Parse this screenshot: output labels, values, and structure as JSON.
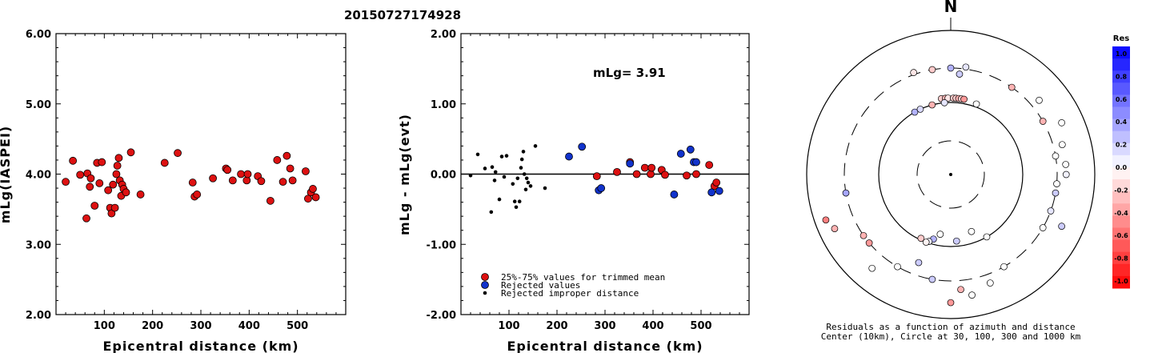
{
  "header": {
    "title": "20150727174928"
  },
  "chart_data": [
    {
      "type": "scatter",
      "xlabel": "Epicentral distance (km)",
      "ylabel": "mLg(IASPEI)",
      "xlim": [
        0,
        600
      ],
      "ylim": [
        2.0,
        6.0
      ],
      "xticks": [
        "100",
        "200",
        "300",
        "400",
        "500"
      ],
      "yticks": [
        "2.00",
        "3.00",
        "4.00",
        "5.00",
        "6.00"
      ],
      "series": [
        {
          "color": "#dd1111",
          "points": [
            [
              20,
              3.89
            ],
            [
              35,
              4.19
            ],
            [
              50,
              3.99
            ],
            [
              63,
              3.37
            ],
            [
              65,
              4.01
            ],
            [
              70,
              3.82
            ],
            [
              72,
              3.94
            ],
            [
              80,
              3.55
            ],
            [
              85,
              4.16
            ],
            [
              90,
              3.87
            ],
            [
              95,
              4.17
            ],
            [
              108,
              3.77
            ],
            [
              112,
              3.52
            ],
            [
              115,
              3.44
            ],
            [
              118,
              3.85
            ],
            [
              122,
              3.52
            ],
            [
              125,
              4.0
            ],
            [
              127,
              4.12
            ],
            [
              130,
              4.23
            ],
            [
              132,
              3.91
            ],
            [
              135,
              3.69
            ],
            [
              137,
              3.85
            ],
            [
              140,
              3.79
            ],
            [
              145,
              3.74
            ],
            [
              155,
              4.31
            ],
            [
              175,
              3.71
            ],
            [
              225,
              4.16
            ],
            [
              252,
              4.3
            ],
            [
              283,
              3.88
            ],
            [
              287,
              3.68
            ],
            [
              292,
              3.71
            ],
            [
              325,
              3.94
            ],
            [
              352,
              4.08
            ],
            [
              355,
              4.06
            ],
            [
              366,
              3.91
            ],
            [
              383,
              4.0
            ],
            [
              395,
              3.91
            ],
            [
              397,
              4.0
            ],
            [
              418,
              3.97
            ],
            [
              425,
              3.9
            ],
            [
              444,
              3.62
            ],
            [
              458,
              4.2
            ],
            [
              470,
              3.89
            ],
            [
              478,
              4.26
            ],
            [
              485,
              4.08
            ],
            [
              490,
              3.91
            ],
            [
              517,
              4.04
            ],
            [
              522,
              3.65
            ],
            [
              528,
              3.74
            ],
            [
              532,
              3.79
            ],
            [
              538,
              3.67
            ]
          ]
        }
      ]
    },
    {
      "type": "scatter",
      "xlabel": "Epicentral distance (km)",
      "ylabel": "mLg - mLg(evt)",
      "xlim": [
        0,
        600
      ],
      "ylim": [
        -2.0,
        2.0
      ],
      "xticks": [
        "100",
        "200",
        "300",
        "400",
        "500"
      ],
      "yticks": [
        "-2.00",
        "-1.00",
        "0.00",
        "1.00",
        "2.00"
      ],
      "annotation": "mLg= 3.91",
      "series": [
        {
          "name": "25%-75% values for trimmed mean",
          "color": "#dd1111",
          "points": [
            [
              283,
              -0.03
            ],
            [
              325,
              0.03
            ],
            [
              352,
              0.17
            ],
            [
              366,
              0.0
            ],
            [
              383,
              0.09
            ],
            [
              395,
              0.0
            ],
            [
              397,
              0.09
            ],
            [
              418,
              0.06
            ],
            [
              425,
              -0.01
            ],
            [
              470,
              -0.02
            ],
            [
              490,
              0.0
            ],
            [
              517,
              0.13
            ],
            [
              528,
              -0.17
            ],
            [
              532,
              -0.12
            ]
          ]
        },
        {
          "name": "Rejected values",
          "color": "#1133cc",
          "points": [
            [
              225,
              0.25
            ],
            [
              252,
              0.39
            ],
            [
              287,
              -0.23
            ],
            [
              292,
              -0.2
            ],
            [
              352,
              0.15
            ],
            [
              444,
              -0.29
            ],
            [
              458,
              0.29
            ],
            [
              478,
              0.35
            ],
            [
              485,
              0.17
            ],
            [
              490,
              0.17
            ],
            [
              522,
              -0.26
            ],
            [
              538,
              -0.24
            ]
          ]
        },
        {
          "name": "Rejected improper distance",
          "color": "#000000",
          "points": [
            [
              20,
              -0.02
            ],
            [
              35,
              0.28
            ],
            [
              50,
              0.08
            ],
            [
              63,
              -0.54
            ],
            [
              65,
              0.1
            ],
            [
              70,
              -0.09
            ],
            [
              72,
              0.03
            ],
            [
              80,
              -0.36
            ],
            [
              85,
              0.25
            ],
            [
              90,
              -0.04
            ],
            [
              95,
              0.26
            ],
            [
              108,
              -0.14
            ],
            [
              112,
              -0.39
            ],
            [
              115,
              -0.47
            ],
            [
              118,
              -0.06
            ],
            [
              122,
              -0.39
            ],
            [
              125,
              0.09
            ],
            [
              127,
              0.21
            ],
            [
              130,
              0.32
            ],
            [
              132,
              0.0
            ],
            [
              135,
              -0.22
            ],
            [
              137,
              -0.06
            ],
            [
              140,
              -0.12
            ],
            [
              145,
              -0.17
            ],
            [
              155,
              0.4
            ],
            [
              175,
              -0.2
            ]
          ]
        }
      ]
    },
    {
      "type": "scatter",
      "title": "N",
      "caption": [
        "Residuals as a function of azimuth and distance",
        "Center (10km), Circle at 30, 100, 300 and 1000 km"
      ],
      "note": "points: azimuth (deg clockwise from N), distance (km), residual",
      "points": [
        [
          0,
          300,
          0.3
        ],
        [
          5,
          250,
          0.2
        ],
        [
          8,
          320,
          0.1
        ],
        [
          350,
          300,
          -0.2
        ],
        [
          340,
          320,
          -0.1
        ],
        [
          353,
          115,
          -0.2
        ],
        [
          356,
          115,
          -0.3
        ],
        [
          358,
          115,
          -0.1
        ],
        [
          2,
          115,
          -0.2
        ],
        [
          4,
          115,
          -0.2
        ],
        [
          6,
          115,
          -0.3
        ],
        [
          8,
          115,
          -0.2
        ],
        [
          10,
          115,
          -0.4
        ],
        [
          355,
          100,
          0.1
        ],
        [
          345,
          100,
          -0.3
        ],
        [
          335,
          100,
          0.15
        ],
        [
          330,
          100,
          0.3
        ],
        [
          20,
          110,
          0.0
        ],
        [
          35,
          300,
          -0.3
        ],
        [
          50,
          400,
          0.0
        ],
        [
          60,
          300,
          -0.3
        ],
        [
          65,
          500,
          0.0
        ],
        [
          75,
          400,
          0.0
        ],
        [
          80,
          300,
          0.0
        ],
        [
          85,
          400,
          0.0
        ],
        [
          90,
          400,
          0.05
        ],
        [
          95,
          300,
          0.0
        ],
        [
          100,
          300,
          0.2
        ],
        [
          110,
          300,
          0.1
        ],
        [
          115,
          500,
          0.2
        ],
        [
          120,
          300,
          0.0
        ],
        [
          150,
          300,
          0.0
        ],
        [
          160,
          400,
          0.0
        ],
        [
          170,
          500,
          0.0
        ],
        [
          175,
          400,
          -0.3
        ],
        [
          180,
          600,
          -0.4
        ],
        [
          190,
          300,
          0.2
        ],
        [
          200,
          200,
          0.2
        ],
        [
          210,
          300,
          0.0
        ],
        [
          220,
          500,
          0.0
        ],
        [
          230,
          300,
          -0.4
        ],
        [
          235,
          300,
          -0.3
        ],
        [
          245,
          600,
          -0.3
        ],
        [
          250,
          700,
          -0.5
        ],
        [
          260,
          300,
          0.35
        ],
        [
          150,
          100,
          0.0
        ],
        [
          160,
          70,
          0.0
        ],
        [
          175,
          85,
          0.2
        ],
        [
          190,
          70,
          0.0
        ],
        [
          195,
          85,
          0.3
        ],
        [
          198,
          95,
          0.05
        ],
        [
          200,
          100,
          -0.05
        ],
        [
          205,
          95,
          -0.2
        ]
      ]
    }
  ],
  "colorbar": {
    "title": "Res",
    "labels": [
      "1.0",
      "0.8",
      "0.6",
      "0.4",
      "0.2",
      "0.0",
      "-0.2",
      "-0.4",
      "-0.6",
      "-0.8",
      "-1.0"
    ],
    "max_color": "#0000ff",
    "min_color": "#ff0000"
  }
}
